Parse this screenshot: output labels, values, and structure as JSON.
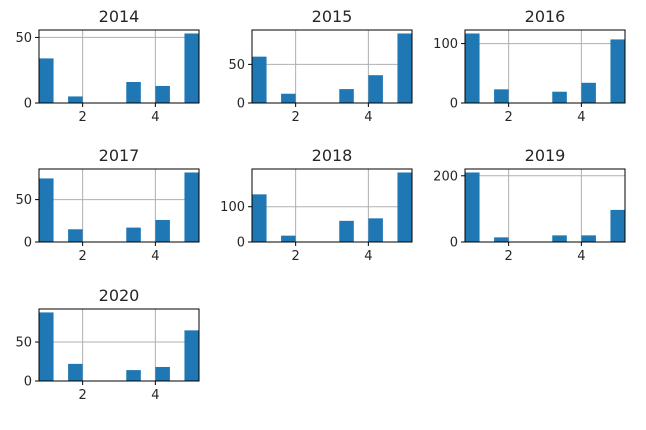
{
  "figure": {
    "bar_color": "#1f77b4",
    "background": "#ffffff",
    "grid": true
  },
  "chart_data": [
    {
      "type": "bar",
      "title": "2014",
      "x": [
        1,
        1.8,
        2.6,
        3.4,
        4.2,
        5.0
      ],
      "values": [
        34,
        5,
        0,
        16,
        13,
        53
      ],
      "xlim": [
        0.8,
        5.2
      ],
      "ylim": [
        0,
        55.65
      ],
      "xticks": [
        2,
        4
      ],
      "yticks": [
        0,
        50
      ]
    },
    {
      "type": "bar",
      "title": "2015",
      "x": [
        1,
        1.8,
        2.6,
        3.4,
        4.2,
        5.0
      ],
      "values": [
        60,
        12,
        0,
        18,
        36,
        90
      ],
      "xlim": [
        0.8,
        5.2
      ],
      "ylim": [
        0,
        94.5
      ],
      "xticks": [
        2,
        4
      ],
      "yticks": [
        0,
        50
      ]
    },
    {
      "type": "bar",
      "title": "2016",
      "x": [
        1,
        1.8,
        2.6,
        3.4,
        4.2,
        5.0
      ],
      "values": [
        117,
        23,
        0,
        19,
        34,
        107
      ],
      "xlim": [
        0.8,
        5.2
      ],
      "ylim": [
        0,
        122.85
      ],
      "xticks": [
        2,
        4
      ],
      "yticks": [
        0,
        100
      ]
    },
    {
      "type": "bar",
      "title": "2017",
      "x": [
        1,
        1.8,
        2.6,
        3.4,
        4.2,
        5.0
      ],
      "values": [
        75,
        15,
        0,
        17,
        26,
        82
      ],
      "xlim": [
        0.8,
        5.2
      ],
      "ylim": [
        0,
        86.1
      ],
      "xticks": [
        2,
        4
      ],
      "yticks": [
        0,
        50
      ]
    },
    {
      "type": "bar",
      "title": "2018",
      "x": [
        1,
        1.8,
        2.6,
        3.4,
        4.2,
        5.0
      ],
      "values": [
        135,
        18,
        0,
        60,
        67,
        197
      ],
      "xlim": [
        0.8,
        5.2
      ],
      "ylim": [
        0,
        206.85
      ],
      "xticks": [
        2,
        4
      ],
      "yticks": [
        0,
        100
      ]
    },
    {
      "type": "bar",
      "title": "2019",
      "x": [
        1,
        1.8,
        2.6,
        3.4,
        4.2,
        5.0
      ],
      "values": [
        210,
        14,
        0,
        20,
        20,
        97
      ],
      "xlim": [
        0.8,
        5.2
      ],
      "ylim": [
        0,
        220.5
      ],
      "xticks": [
        2,
        4
      ],
      "yticks": [
        0,
        200
      ]
    },
    {
      "type": "bar",
      "title": "2020",
      "x": [
        1,
        1.8,
        2.6,
        3.4,
        4.2,
        5.0
      ],
      "values": [
        88,
        22,
        0,
        14,
        18,
        65
      ],
      "xlim": [
        0.8,
        5.2
      ],
      "ylim": [
        0,
        92.4
      ],
      "xticks": [
        2,
        4
      ],
      "yticks": [
        0,
        50
      ]
    }
  ]
}
